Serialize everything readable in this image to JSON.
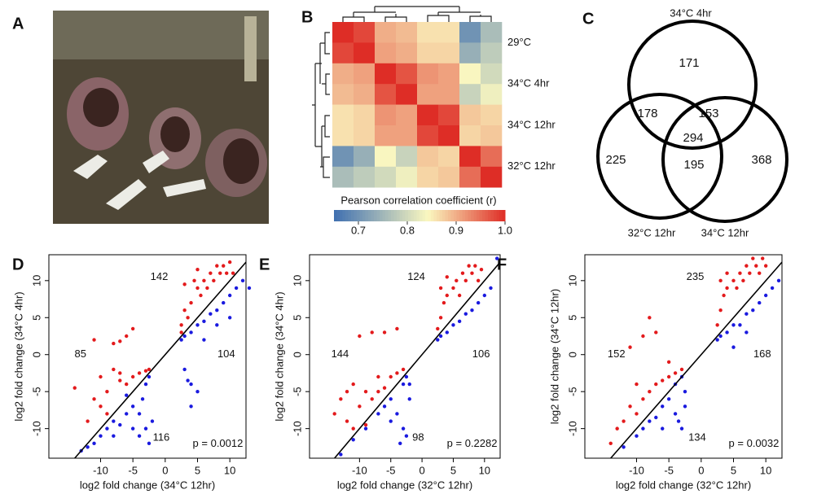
{
  "panel_labels": [
    "A",
    "B",
    "C",
    "D",
    "E",
    "F"
  ],
  "chart_data": [
    {
      "type": "heatmap",
      "row_labels": [
        "29°C",
        "34°C 4hr",
        "34°C 12hr",
        "32°C 12hr"
      ],
      "values": [
        [
          1.0,
          0.98,
          0.9,
          0.89,
          0.86,
          0.86,
          0.7,
          0.76
        ],
        [
          0.98,
          1.0,
          0.91,
          0.9,
          0.87,
          0.87,
          0.74,
          0.78
        ],
        [
          0.9,
          0.91,
          1.0,
          0.97,
          0.92,
          0.91,
          0.84,
          0.8
        ],
        [
          0.89,
          0.9,
          0.97,
          1.0,
          0.91,
          0.91,
          0.79,
          0.83
        ],
        [
          0.86,
          0.87,
          0.92,
          0.91,
          1.0,
          0.98,
          0.88,
          0.87
        ],
        [
          0.86,
          0.87,
          0.91,
          0.91,
          0.98,
          1.0,
          0.87,
          0.88
        ],
        [
          0.7,
          0.74,
          0.84,
          0.79,
          0.88,
          0.87,
          1.0,
          0.95
        ],
        [
          0.76,
          0.78,
          0.8,
          0.83,
          0.87,
          0.88,
          0.95,
          1.0
        ]
      ],
      "colorbar_label": "Pearson correlation coefficient (r)",
      "clim": [
        0.65,
        1.0
      ],
      "cticks": [
        0.7,
        0.8,
        0.9,
        {
          "value": 1,
          "label": "1.0"
        }
      ],
      "colors": [
        "#3f6fb0",
        "#fbf8c0",
        "#de2d26"
      ]
    },
    {
      "type": "venn",
      "set_labels": [
        "34°C 4hr",
        "32°C 12hr",
        "34°C 12hr"
      ],
      "values": [
        171,
        178,
        153,
        294,
        225,
        195,
        368
      ]
    },
    {
      "type": "scatter",
      "xlabel": "log2 fold change (34°C 12hr)",
      "ylabel": "log2 fold change (34°C 4hr)",
      "xlim": [
        -18,
        12.5
      ],
      "ylim": [
        -14,
        13.5
      ],
      "xticks": [
        -10,
        -5,
        0,
        5,
        10
      ],
      "yticks": [
        -10,
        -5,
        0,
        5,
        10
      ],
      "annotations": [
        "142",
        "85",
        "104",
        "116",
        "p = 0.0012"
      ],
      "series": [
        {
          "color": "#e31a1c",
          "x": [
            2.5,
            3,
            3.5,
            4,
            5,
            5.5,
            6,
            6.5,
            7,
            7.5,
            8,
            8.5,
            9,
            9.5,
            10,
            10.5,
            4.5,
            3,
            5,
            2.5,
            -14,
            -12,
            -11,
            -10,
            -9,
            -8,
            -7,
            -6,
            -5,
            -4,
            -3,
            -2.5,
            -11,
            -8,
            -7,
            -6,
            -5,
            -9,
            -10,
            -7
          ],
          "values": [
            4,
            6,
            5,
            7,
            9,
            8,
            10,
            9,
            11,
            10,
            12,
            11,
            12,
            11,
            12.5,
            11,
            10,
            9.5,
            11.5,
            3,
            -4.5,
            -9,
            -6,
            -7,
            -5,
            -2,
            -3.5,
            -4,
            -3,
            -2.5,
            -2.2,
            -2,
            2,
            1.5,
            1.8,
            2.5,
            3.5,
            -8,
            -3,
            -2.5
          ]
        },
        {
          "color": "#1a1adf",
          "x": [
            2.5,
            3,
            4,
            5,
            6,
            7,
            8,
            9,
            10,
            11,
            12,
            13,
            6,
            8,
            10,
            3,
            4,
            5,
            4,
            3.5,
            -13,
            -12,
            -10,
            -9,
            -8,
            -7,
            -6,
            -5,
            -4,
            -3,
            -2.5,
            -4,
            -3,
            -2.5,
            -5,
            -6,
            -3.5,
            -2,
            -8,
            -11
          ],
          "values": [
            2,
            2.5,
            3,
            4,
            4.5,
            5.5,
            6,
            7,
            8,
            9,
            10,
            9,
            2,
            4,
            5,
            -2,
            -4,
            -5,
            -7,
            -3.5,
            -13,
            -12.5,
            -11,
            -10,
            -9,
            -9.5,
            -8,
            -7,
            -8,
            -10,
            -12,
            -11,
            -4,
            -3,
            -10,
            -5.5,
            -6,
            -9,
            -11,
            -12
          ]
        }
      ]
    },
    {
      "type": "scatter",
      "xlabel": "log2 fold change (32°C 12hr)",
      "ylabel": "log2 fold change (34°C 4hr)",
      "xlim": [
        -18,
        12.5
      ],
      "ylim": [
        -14,
        13.5
      ],
      "xticks": [
        -10,
        -5,
        0,
        5,
        10
      ],
      "yticks": [
        -10,
        -5,
        0,
        5,
        10
      ],
      "annotations": [
        "124",
        "144",
        "106",
        "98",
        "p = 0.2282"
      ],
      "series": [
        {
          "color": "#e31a1c",
          "x": [
            2.5,
            3,
            3.5,
            4,
            5,
            5.5,
            6,
            6.5,
            7,
            7.5,
            8,
            8.5,
            9,
            9.5,
            3,
            4,
            -14,
            -13,
            -12,
            -11,
            -10,
            -9,
            -8,
            -7,
            -6,
            -5,
            -4,
            -3,
            -12,
            -10,
            -8,
            -6,
            -4,
            -9,
            -11,
            -7
          ],
          "values": [
            3.5,
            5,
            7,
            8,
            9,
            10,
            8,
            11,
            10,
            12,
            11,
            12,
            10,
            11.5,
            9,
            10.5,
            -8,
            -6,
            -9,
            -4,
            -7,
            -5,
            -6,
            -3,
            -4.5,
            -3,
            -2.5,
            -2,
            -5,
            2.5,
            3,
            3,
            3.5,
            -9.5,
            -10,
            -5
          ]
        },
        {
          "color": "#1a1adf",
          "x": [
            2.5,
            3,
            4,
            5,
            6,
            7,
            8,
            9,
            10,
            11,
            12,
            -2,
            -13,
            -11,
            -9,
            -7,
            -5,
            -4,
            -3,
            -2.5,
            -3,
            -2.5,
            -6,
            -5,
            -3.5,
            -2
          ],
          "values": [
            2,
            2.5,
            3,
            4,
            4.5,
            5.5,
            6,
            7,
            8,
            9,
            13,
            -6,
            -13.5,
            -11.5,
            -10,
            -8,
            -6,
            -8,
            -10,
            -11,
            -4,
            -3,
            -7,
            -9,
            -12,
            -4
          ]
        }
      ]
    },
    {
      "type": "scatter",
      "xlabel": "log2 fold change (32°C 12hr)",
      "ylabel": "log2 fold change (34°C 12hr)",
      "xlim": [
        -18,
        12.5
      ],
      "ylim": [
        -14,
        13.5
      ],
      "xticks": [
        -10,
        -5,
        0,
        5,
        10
      ],
      "yticks": [
        -10,
        -5,
        0,
        5,
        10
      ],
      "annotations": [
        "235",
        "152",
        "168",
        "134",
        "p = 0.0032"
      ],
      "series": [
        {
          "color": "#e31a1c",
          "x": [
            2.5,
            3,
            3.5,
            4,
            5,
            5.5,
            6,
            6.5,
            7,
            7.5,
            8,
            8.5,
            9,
            9.5,
            10,
            3,
            4,
            -14,
            -13,
            -12,
            -11,
            -10,
            -9,
            -8,
            -7,
            -6,
            -5,
            -4,
            -3,
            -11,
            -9,
            -8,
            -7,
            -10,
            -5
          ],
          "values": [
            4,
            6,
            8,
            9,
            10,
            9,
            11,
            10,
            12,
            11,
            13,
            12,
            11,
            13,
            12,
            10,
            11,
            -12,
            -10,
            -9,
            -7,
            -8,
            -6,
            -5,
            -4,
            -3.5,
            -3,
            -2.5,
            -2,
            1,
            2.5,
            5,
            3,
            -4,
            -1
          ]
        },
        {
          "color": "#1a1adf",
          "x": [
            2.5,
            3,
            4,
            5,
            6,
            7,
            8,
            9,
            10,
            11,
            12,
            5,
            7,
            -12,
            -10,
            -9,
            -8,
            -7,
            -6,
            -5,
            -4,
            -3,
            -2.5,
            -4,
            -3,
            -2.5,
            -6,
            -3.5
          ],
          "values": [
            2,
            2.5,
            3,
            4,
            4,
            5.5,
            6,
            7,
            8,
            9,
            10,
            1,
            3,
            -12.5,
            -11,
            -10,
            -9,
            -8.5,
            -7,
            -6,
            -8,
            -10,
            -7,
            -4,
            -3,
            -5,
            -10,
            -9
          ]
        }
      ]
    }
  ]
}
